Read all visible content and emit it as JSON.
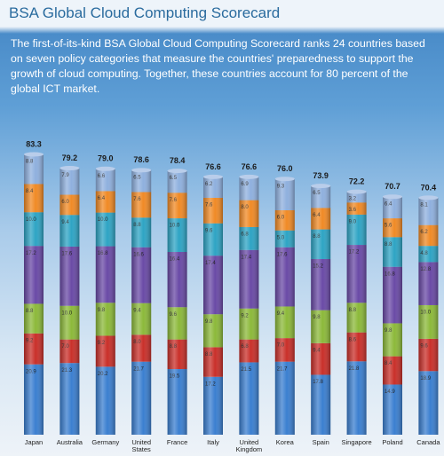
{
  "title": "BSA Global Cloud Computing Scorecard",
  "description": "The first-of-its-kind BSA Global Cloud Computing Scorecard ranks 24 countries based on seven policy categories that measure the countries' preparedness to support the growth of cloud computing. Together, these countries account for 80 percent of the global ICT market.",
  "chart_data": {
    "type": "stacked-bar",
    "categories": [
      "Japan",
      "Australia",
      "Germany",
      "United States",
      "France",
      "Italy",
      "United Kingdom",
      "Korea",
      "Spain",
      "Singapore",
      "Poland",
      "Canada"
    ],
    "totals": [
      83.3,
      79.2,
      79.0,
      78.6,
      78.4,
      76.6,
      76.6,
      76.0,
      73.9,
      72.2,
      70.7,
      70.4
    ],
    "total_labels": [
      "83.3",
      "79.2",
      "79.0",
      "78.6",
      "78.4",
      "76.6",
      "76.6",
      "76.0",
      "73.9",
      "72.2",
      "70.7",
      "70.4"
    ],
    "series": [
      {
        "color": "#3b7fd0",
        "values": [
          20.9,
          21.3,
          20.2,
          21.7,
          19.5,
          17.2,
          21.5,
          21.7,
          17.8,
          21.8,
          14.9,
          18.9
        ],
        "value_labels": [
          "20.9",
          "21.3",
          "20.2",
          "21.7",
          "19.5",
          "17.2",
          "21.5",
          "21.7",
          "17.8",
          "21.8",
          "14.9",
          "18.9"
        ]
      },
      {
        "color": "#c9302a",
        "values": [
          9.2,
          7.0,
          9.2,
          8.0,
          8.8,
          8.8,
          6.8,
          7.0,
          9.4,
          8.6,
          8.4,
          9.6
        ],
        "value_labels": [
          "9.2",
          "7.0",
          "9.2",
          "8.0",
          "8.8",
          "8.8",
          "6.8",
          "7.0",
          "9.4",
          "8.6",
          "8.4",
          "9.6"
        ]
      },
      {
        "color": "#8cb93a",
        "values": [
          8.8,
          10.0,
          9.8,
          9.4,
          9.6,
          9.8,
          9.2,
          9.4,
          9.8,
          8.8,
          9.8,
          10.0
        ],
        "value_labels": [
          "8.8",
          "10.0",
          "9.8",
          "9.4",
          "9.6",
          "9.8",
          "9.2",
          "9.4",
          "9.8",
          "8.8",
          "9.8",
          "10.0"
        ]
      },
      {
        "color": "#6a4aa6",
        "values": [
          17.2,
          17.6,
          16.8,
          16.6,
          16.4,
          17.4,
          17.4,
          17.6,
          15.2,
          17.2,
          16.8,
          12.8
        ],
        "value_labels": [
          "17.2",
          "17.6",
          "16.8",
          "16.6",
          "16.4",
          "17.4",
          "17.4",
          "17.6",
          "15.2",
          "17.2",
          "16.8",
          "12.8"
        ]
      },
      {
        "color": "#2ea4c4",
        "values": [
          10.0,
          9.4,
          10.0,
          8.8,
          10.0,
          9.6,
          6.8,
          5.0,
          8.8,
          9.0,
          8.8,
          4.8
        ],
        "value_labels": [
          "10.0",
          "9.4",
          "10.0",
          "8.8",
          "10.0",
          "9.6",
          "6.8",
          "5.0",
          "8.8",
          "9.0",
          "8.8",
          "4.8"
        ]
      },
      {
        "color": "#f08a26",
        "values": [
          8.4,
          6.0,
          6.4,
          7.6,
          7.6,
          7.6,
          8.0,
          6.0,
          6.4,
          3.6,
          5.6,
          6.2
        ],
        "value_labels": [
          "8.4",
          "6.0",
          "6.4",
          "7.6",
          "7.6",
          "7.6",
          "8.0",
          "6.0",
          "6.4",
          "3.6",
          "5.6",
          "6.2"
        ]
      },
      {
        "color": "#8fb0de",
        "values": [
          8.8,
          7.9,
          6.6,
          6.5,
          6.5,
          6.2,
          6.9,
          9.3,
          6.5,
          3.2,
          6.4,
          8.1
        ],
        "value_labels": [
          "8.8",
          "7.9",
          "6.6",
          "6.5",
          "6.5",
          "6.2",
          "6.9",
          "9.3",
          "6.5",
          "3.2",
          "6.4",
          "8.1"
        ]
      }
    ]
  }
}
